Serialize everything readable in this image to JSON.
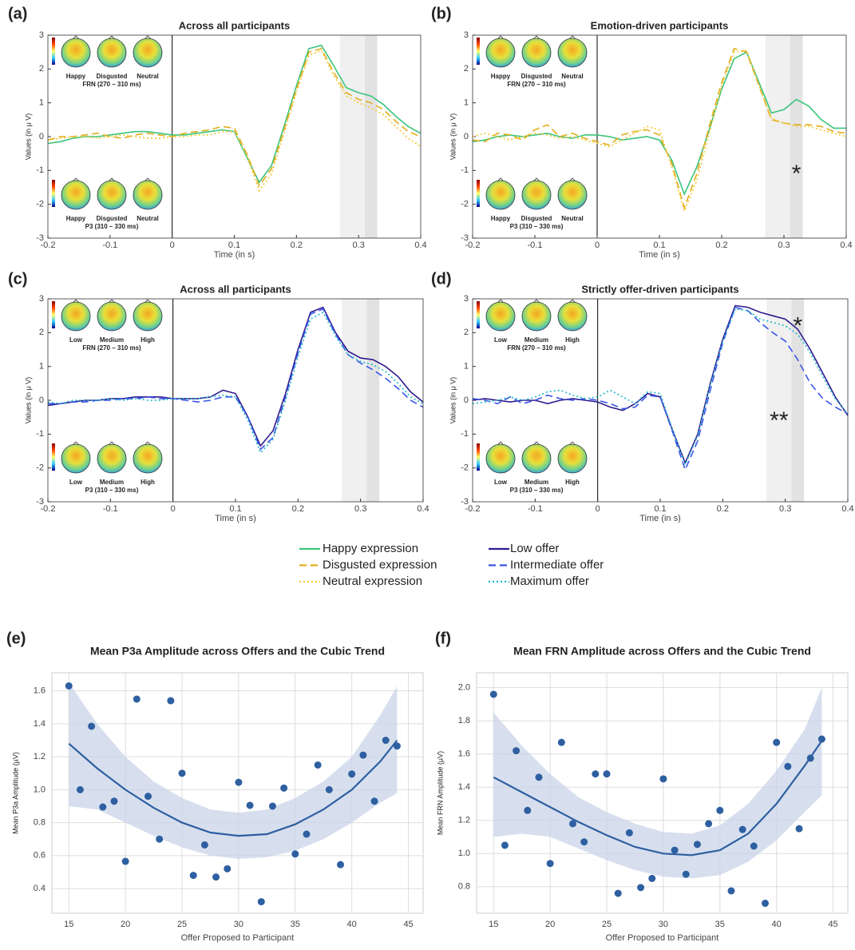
{
  "chart_data": [
    {
      "type": "line",
      "panel": "(a)",
      "title": "Across all participants",
      "xlabel": "Time (in s)",
      "ylabel": "Values (in μ V)",
      "xlim": [
        -0.2,
        0.4
      ],
      "ylim": [
        -3,
        3
      ],
      "xticks": [
        -0.2,
        -0.1,
        0,
        0.1,
        0.2,
        0.3,
        0.4
      ],
      "yticks": [
        -3,
        -2,
        -1,
        0,
        1,
        2,
        3
      ],
      "vline": 0,
      "shaded_regions": [
        [
          0.27,
          0.31
        ],
        [
          0.31,
          0.33
        ]
      ],
      "topomaps": [
        {
          "labels": [
            "Happy",
            "Disgusted",
            "Neutral"
          ],
          "caption": "FRN (270 – 310 ms)"
        },
        {
          "labels": [
            "Happy",
            "Disgusted",
            "Neutral"
          ],
          "caption": "P3 (310 – 330 ms)"
        }
      ],
      "x": [
        -0.2,
        -0.18,
        -0.16,
        -0.14,
        -0.12,
        -0.1,
        -0.08,
        -0.06,
        -0.04,
        -0.02,
        0,
        0.02,
        0.04,
        0.06,
        0.08,
        0.1,
        0.12,
        0.14,
        0.16,
        0.18,
        0.2,
        0.22,
        0.24,
        0.26,
        0.28,
        0.3,
        0.32,
        0.34,
        0.36,
        0.38,
        0.4
      ],
      "series": [
        {
          "name": "Happy expression",
          "color": "#3cc47c",
          "style": "solid",
          "values": [
            -0.2,
            -0.15,
            -0.05,
            0,
            0,
            0.05,
            0.1,
            0.15,
            0.15,
            0.1,
            0.05,
            0.05,
            0.1,
            0.15,
            0.2,
            0.15,
            -0.6,
            -1.35,
            -0.85,
            0.3,
            1.5,
            2.6,
            2.7,
            2.1,
            1.45,
            1.3,
            1.2,
            0.95,
            0.6,
            0.3,
            0.1
          ]
        },
        {
          "name": "Disgusted expression",
          "color": "#e0ad1a",
          "style": "dashed",
          "values": [
            -0.1,
            0,
            0,
            0.05,
            0.1,
            0,
            -0.05,
            0.05,
            0.1,
            0.05,
            0,
            0.1,
            0.15,
            0.2,
            0.3,
            0.25,
            -0.5,
            -1.45,
            -0.95,
            0.2,
            1.4,
            2.5,
            2.6,
            1.9,
            1.3,
            1.1,
            1,
            0.8,
            0.45,
            0.15,
            0
          ]
        },
        {
          "name": "Neutral expression",
          "color": "#f7c630",
          "style": "dotted",
          "values": [
            -0.1,
            -0.05,
            0,
            0,
            -0.05,
            0,
            0.05,
            0,
            -0.05,
            -0.05,
            0,
            0,
            0.05,
            0.05,
            0.15,
            0.15,
            -0.55,
            -1.6,
            -1.1,
            0.1,
            1.3,
            2.4,
            2.55,
            1.8,
            1.2,
            1,
            0.85,
            0.65,
            0.3,
            -0.05,
            -0.3
          ]
        }
      ]
    },
    {
      "type": "line",
      "panel": "(b)",
      "title": "Emotion-driven participants",
      "xlabel": "Time (in s)",
      "ylabel": "Values (in μ V)",
      "xlim": [
        -0.2,
        0.4
      ],
      "ylim": [
        -3,
        3
      ],
      "xticks": [
        -0.2,
        -0.1,
        0,
        0.1,
        0.2,
        0.3,
        0.4
      ],
      "yticks": [
        -3,
        -2,
        -1,
        0,
        1,
        2,
        3
      ],
      "vline": 0,
      "shaded_regions": [
        [
          0.27,
          0.31
        ],
        [
          0.31,
          0.33
        ]
      ],
      "topomaps": [
        {
          "labels": [
            "Happy",
            "Disgusted",
            "Neutral"
          ],
          "caption": "FRN (270 – 310 ms)"
        },
        {
          "labels": [
            "Happy",
            "Disgusted",
            "Neutral"
          ],
          "caption": "P3 (310 – 330 ms)"
        }
      ],
      "annotations": [
        {
          "text": "*",
          "x": 0.32,
          "y": -0.95
        }
      ],
      "x": [
        -0.2,
        -0.18,
        -0.16,
        -0.14,
        -0.12,
        -0.1,
        -0.08,
        -0.06,
        -0.04,
        -0.02,
        0,
        0.02,
        0.04,
        0.06,
        0.08,
        0.1,
        0.12,
        0.14,
        0.16,
        0.18,
        0.2,
        0.22,
        0.24,
        0.26,
        0.28,
        0.3,
        0.32,
        0.34,
        0.36,
        0.38,
        0.4
      ],
      "series": [
        {
          "color": "#3cc47c",
          "style": "solid",
          "values": [
            -0.15,
            -0.1,
            0,
            0.05,
            0,
            0.05,
            0.1,
            0,
            -0.05,
            0.05,
            0.05,
            0,
            -0.1,
            -0.05,
            0,
            -0.1,
            -0.7,
            -1.7,
            -0.9,
            0.2,
            1.4,
            2.3,
            2.5,
            1.6,
            0.7,
            0.8,
            1.1,
            0.9,
            0.5,
            0.25,
            0.25
          ]
        },
        {
          "color": "#e0ad1a",
          "style": "dashed",
          "values": [
            -0.1,
            -0.15,
            0.1,
            0.05,
            -0.1,
            0.2,
            0.35,
            0,
            0.1,
            -0.05,
            -0.15,
            -0.25,
            0.05,
            0.15,
            0.2,
            0.05,
            -0.8,
            -2.1,
            -1.1,
            0.3,
            1.6,
            2.6,
            2.5,
            1.5,
            0.5,
            0.4,
            0.35,
            0.35,
            0.3,
            0.15,
            0.1
          ]
        },
        {
          "color": "#f7c630",
          "style": "dotted",
          "values": [
            0,
            0.1,
            0,
            -0.1,
            0,
            0.1,
            0.05,
            -0.05,
            0,
            -0.1,
            -0.2,
            -0.3,
            -0.1,
            0.1,
            0.3,
            0.2,
            -0.9,
            -2.2,
            -1.3,
            0.1,
            1.5,
            2.5,
            2.55,
            1.5,
            0.55,
            0.4,
            0.3,
            0.3,
            0.2,
            0.1,
            0
          ]
        }
      ]
    },
    {
      "type": "line",
      "panel": "(c)",
      "title": "Across all participants",
      "xlabel": "Time (in s)",
      "ylabel": "Values (in μ V)",
      "xlim": [
        -0.2,
        0.4
      ],
      "ylim": [
        -3,
        3
      ],
      "xticks": [
        -0.2,
        -0.1,
        0,
        0.1,
        0.2,
        0.3,
        0.4
      ],
      "yticks": [
        -3,
        -2,
        -1,
        0,
        1,
        2,
        3
      ],
      "vline": 0,
      "shaded_regions": [
        [
          0.27,
          0.31
        ],
        [
          0.31,
          0.33
        ]
      ],
      "topomaps": [
        {
          "labels": [
            "Low",
            "Medium",
            "High"
          ],
          "caption": "FRN (270 – 310 ms)"
        },
        {
          "labels": [
            "Low",
            "Medium",
            "High"
          ],
          "caption": "P3 (310 – 330 ms)"
        }
      ],
      "x": [
        -0.2,
        -0.18,
        -0.16,
        -0.14,
        -0.12,
        -0.1,
        -0.08,
        -0.06,
        -0.04,
        -0.02,
        0,
        0.02,
        0.04,
        0.06,
        0.08,
        0.1,
        0.12,
        0.14,
        0.16,
        0.18,
        0.2,
        0.22,
        0.24,
        0.26,
        0.28,
        0.3,
        0.32,
        0.34,
        0.36,
        0.38,
        0.4
      ],
      "series": [
        {
          "name": "Low offer",
          "color": "#2d1b8f",
          "style": "solid",
          "values": [
            -0.15,
            -0.1,
            -0.05,
            0,
            0,
            0.05,
            0.05,
            0.1,
            0.1,
            0.1,
            0.05,
            0.05,
            0.05,
            0.1,
            0.3,
            0.2,
            -0.5,
            -1.35,
            -0.9,
            0.2,
            1.5,
            2.6,
            2.75,
            2,
            1.45,
            1.25,
            1.2,
            1,
            0.7,
            0.25,
            -0.05
          ]
        },
        {
          "name": "Intermediate offer",
          "color": "#3a55e6",
          "style": "dashed",
          "values": [
            -0.1,
            -0.1,
            -0.05,
            -0.05,
            0,
            0,
            0.05,
            0.05,
            0.1,
            0.05,
            0.05,
            0,
            -0.05,
            0,
            0.1,
            0.1,
            -0.5,
            -1.45,
            -1.1,
            0.1,
            1.4,
            2.55,
            2.7,
            1.95,
            1.35,
            1.1,
            0.9,
            0.65,
            0.35,
            0,
            -0.2
          ]
        },
        {
          "name": "Maximum offer",
          "color": "#1ab7c9",
          "style": "dotted",
          "values": [
            -0.05,
            -0.1,
            0,
            0,
            0,
            0.05,
            0,
            0.05,
            0,
            0,
            0.05,
            0.05,
            0.05,
            0.1,
            0.15,
            0.1,
            -0.6,
            -1.55,
            -1.15,
            0,
            1.3,
            2.4,
            2.6,
            1.9,
            1.35,
            1.15,
            1.05,
            0.85,
            0.5,
            0.1,
            -0.1
          ]
        }
      ]
    },
    {
      "type": "line",
      "panel": "(d)",
      "title": "Strictly offer-driven participants",
      "xlabel": "Time (in s)",
      "ylabel": "Values (in μ V)",
      "xlim": [
        -0.2,
        0.4
      ],
      "ylim": [
        -3,
        3
      ],
      "xticks": [
        -0.2,
        -0.1,
        0,
        0.1,
        0.2,
        0.3,
        0.4
      ],
      "yticks": [
        -3,
        -2,
        -1,
        0,
        1,
        2,
        3
      ],
      "vline": 0,
      "shaded_regions": [
        [
          0.27,
          0.31
        ],
        [
          0.31,
          0.33
        ]
      ],
      "topomaps": [
        {
          "labels": [
            "Low",
            "Medium",
            "High"
          ],
          "caption": "FRN (270 – 310 ms)"
        },
        {
          "labels": [
            "Low",
            "Medium",
            "High"
          ],
          "caption": "P3 (310 – 330 ms)"
        }
      ],
      "annotations": [
        {
          "text": "*",
          "x": 0.32,
          "y": 2.35
        },
        {
          "text": "**",
          "x": 0.29,
          "y": -0.45
        }
      ],
      "x": [
        -0.2,
        -0.18,
        -0.16,
        -0.14,
        -0.12,
        -0.1,
        -0.08,
        -0.06,
        -0.04,
        -0.02,
        0,
        0.02,
        0.04,
        0.06,
        0.08,
        0.1,
        0.12,
        0.14,
        0.16,
        0.18,
        0.2,
        0.22,
        0.24,
        0.26,
        0.28,
        0.3,
        0.32,
        0.34,
        0.36,
        0.38,
        0.4
      ],
      "series": [
        {
          "color": "#2d1b8f",
          "style": "solid",
          "values": [
            0,
            0.05,
            0,
            -0.05,
            0,
            0,
            -0.1,
            0,
            0.05,
            0,
            -0.05,
            -0.2,
            -0.3,
            -0.1,
            0.2,
            0.1,
            -0.9,
            -1.85,
            -1,
            0.5,
            1.8,
            2.8,
            2.75,
            2.6,
            2.5,
            2.4,
            2.1,
            1.5,
            0.8,
            0.1,
            -0.45
          ]
        },
        {
          "color": "#3a55e6",
          "style": "dashed",
          "values": [
            0.05,
            0,
            -0.1,
            0.1,
            -0.1,
            0,
            0.15,
            0.05,
            0,
            0.05,
            0,
            -0.1,
            -0.25,
            -0.2,
            0.15,
            0.1,
            -0.95,
            -2.05,
            -1.2,
            0.3,
            1.7,
            2.75,
            2.65,
            2.3,
            2,
            1.75,
            1.2,
            0.5,
            0.05,
            -0.2,
            -0.4
          ]
        },
        {
          "color": "#1ab7c9",
          "style": "dotted",
          "values": [
            -0.1,
            -0.05,
            0,
            0.1,
            0,
            0.1,
            0.25,
            0.3,
            0.15,
            0.05,
            0.1,
            0.3,
            0.1,
            -0.1,
            0.25,
            0.2,
            -0.9,
            -1.9,
            -1.05,
            0.45,
            1.75,
            2.7,
            2.65,
            2.4,
            2.3,
            2.2,
            1.95,
            1.4,
            0.7,
            0.05,
            -0.4
          ]
        }
      ]
    },
    {
      "type": "scatter",
      "panel": "(e)",
      "title": "Mean P3a Amplitude across Offers and the Cubic Trend",
      "xlabel": "Offer Proposed to Participant",
      "ylabel": "Mean P3a Amplitude (µV)",
      "xlim": [
        13.5,
        46.3
      ],
      "ylim": [
        0.25,
        1.71
      ],
      "xticks": [
        15,
        20,
        25,
        30,
        35,
        40,
        45
      ],
      "yticks": [
        0.4,
        0.6,
        0.8,
        {
          "value": 1,
          "label": "1.0"
        },
        1.2,
        1.4,
        1.6
      ],
      "grid": true,
      "color": "#2e5fa1",
      "x": [
        15,
        16,
        17,
        18,
        19,
        20,
        21,
        22,
        23,
        24,
        25,
        26,
        27,
        28,
        29,
        30,
        31,
        32,
        33,
        34,
        35,
        36,
        37,
        38,
        39,
        40,
        41,
        42,
        43,
        44
      ],
      "values": [
        1.63,
        1,
        1.385,
        0.895,
        0.93,
        0.565,
        1.55,
        0.96,
        0.7,
        1.54,
        1.1,
        0.48,
        0.665,
        0.47,
        0.52,
        1.045,
        0.905,
        0.32,
        0.9,
        1.01,
        0.61,
        0.73,
        1.15,
        1,
        0.545,
        1.095,
        1.21,
        0.93,
        1.3,
        1.265
      ],
      "trend": {
        "x": [
          15,
          17.5,
          20,
          22.5,
          25,
          27.5,
          30,
          32.5,
          35,
          37.5,
          40,
          42.5,
          44
        ],
        "values": [
          1.28,
          1.13,
          1,
          0.89,
          0.8,
          0.74,
          0.72,
          0.73,
          0.79,
          0.88,
          1,
          1.17,
          1.3
        ],
        "lower": [
          0.9,
          0.88,
          0.8,
          0.72,
          0.65,
          0.6,
          0.58,
          0.59,
          0.63,
          0.7,
          0.8,
          0.92,
          0.98
        ],
        "upper": [
          1.65,
          1.4,
          1.2,
          1.05,
          0.95,
          0.88,
          0.86,
          0.88,
          0.95,
          1.05,
          1.2,
          1.45,
          1.63
        ]
      }
    },
    {
      "type": "scatter",
      "panel": "(f)",
      "title": "Mean FRN Amplitude across Offers and the Cubic Trend",
      "xlabel": "Offer Proposed to Participant",
      "ylabel": "Mean FRN Amplitude (µV)",
      "xlim": [
        13.5,
        46.3
      ],
      "ylim": [
        0.64,
        2.09
      ],
      "xticks": [
        15,
        20,
        25,
        30,
        35,
        40,
        45
      ],
      "yticks": [
        0.8,
        {
          "value": 1,
          "label": "1.0"
        },
        1.2,
        1.4,
        1.6,
        1.8,
        {
          "value": 2,
          "label": "2.0"
        }
      ],
      "grid": true,
      "color": "#2e5fa1",
      "x": [
        15,
        16,
        17,
        18,
        19,
        20,
        21,
        22,
        23,
        24,
        25,
        26,
        27,
        28,
        29,
        30,
        31,
        32,
        33,
        34,
        35,
        36,
        37,
        38,
        39,
        40,
        41,
        42,
        43,
        44
      ],
      "values": [
        1.96,
        1.05,
        1.62,
        1.26,
        1.46,
        0.94,
        1.67,
        1.18,
        1.07,
        1.48,
        1.48,
        0.76,
        1.125,
        0.795,
        0.85,
        1.45,
        1.02,
        0.875,
        1.055,
        1.18,
        1.26,
        0.775,
        1.145,
        1.045,
        0.7,
        1.67,
        1.525,
        1.15,
        1.575,
        1.69
      ],
      "trend": {
        "x": [
          15,
          17.5,
          20,
          22.5,
          25,
          27.5,
          30,
          32.5,
          35,
          37.5,
          40,
          42.5,
          44
        ],
        "values": [
          1.46,
          1.37,
          1.28,
          1.19,
          1.11,
          1.04,
          1,
          0.99,
          1.02,
          1.12,
          1.3,
          1.53,
          1.68
        ],
        "lower": [
          1.1,
          1.12,
          1.1,
          1.03,
          0.96,
          0.9,
          0.86,
          0.85,
          0.87,
          0.95,
          1.08,
          1.25,
          1.35
        ],
        "upper": [
          1.85,
          1.65,
          1.48,
          1.34,
          1.25,
          1.18,
          1.13,
          1.12,
          1.17,
          1.3,
          1.5,
          1.75,
          2
        ]
      }
    }
  ]
}
